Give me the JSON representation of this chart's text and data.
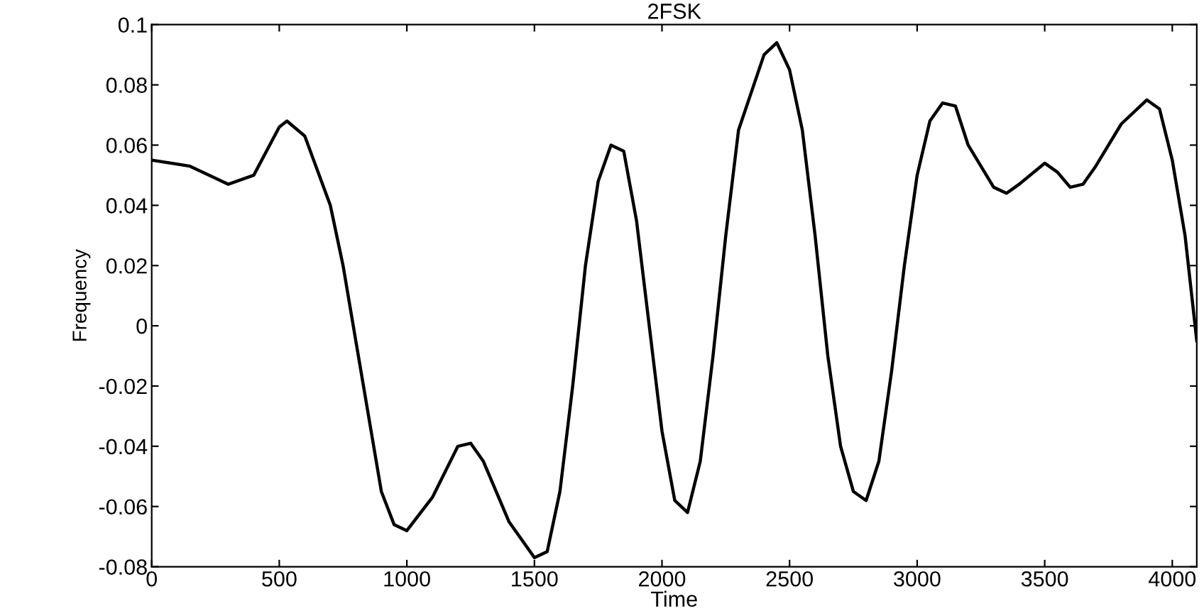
{
  "chart_data": {
    "type": "line",
    "title": "2FSK",
    "xlabel": "Time",
    "ylabel": "Frequency",
    "xlim": [
      0,
      4096
    ],
    "xticks": [
      0,
      500,
      1000,
      1500,
      2000,
      2500,
      3000,
      3500,
      4000
    ],
    "ylim": [
      -0.08,
      0.1
    ],
    "yticks": [
      -0.08,
      -0.06,
      -0.04,
      -0.02,
      0,
      0.02,
      0.04,
      0.06,
      0.08,
      0.1
    ],
    "grid": false,
    "legend": false,
    "marker": "none",
    "line_style": "solid",
    "x": [
      0,
      150,
      300,
      400,
      500,
      530,
      600,
      700,
      750,
      800,
      850,
      900,
      950,
      1000,
      1100,
      1200,
      1250,
      1300,
      1400,
      1500,
      1550,
      1600,
      1650,
      1700,
      1750,
      1800,
      1850,
      1900,
      1950,
      2000,
      2050,
      2100,
      2150,
      2200,
      2250,
      2300,
      2400,
      2450,
      2500,
      2550,
      2600,
      2650,
      2700,
      2750,
      2800,
      2850,
      2900,
      2950,
      3000,
      3050,
      3100,
      3150,
      3200,
      3300,
      3350,
      3400,
      3500,
      3550,
      3600,
      3650,
      3700,
      3800,
      3900,
      3950,
      4000,
      4050,
      4096
    ],
    "series": [
      {
        "color": "#000000",
        "values": [
          0.055,
          0.053,
          0.047,
          0.05,
          0.066,
          0.068,
          0.063,
          0.04,
          0.02,
          -0.005,
          -0.03,
          -0.055,
          -0.066,
          -0.068,
          -0.057,
          -0.04,
          -0.039,
          -0.045,
          -0.065,
          -0.077,
          -0.075,
          -0.055,
          -0.02,
          0.02,
          0.048,
          0.06,
          0.058,
          0.035,
          0.0,
          -0.035,
          -0.058,
          -0.062,
          -0.045,
          -0.01,
          0.03,
          0.065,
          0.09,
          0.094,
          0.085,
          0.065,
          0.03,
          -0.01,
          -0.04,
          -0.055,
          -0.058,
          -0.045,
          -0.015,
          0.02,
          0.05,
          0.068,
          0.074,
          0.073,
          0.06,
          0.046,
          0.044,
          0.047,
          0.054,
          0.051,
          0.046,
          0.047,
          0.053,
          0.067,
          0.075,
          0.072,
          0.055,
          0.03,
          -0.005
        ]
      }
    ]
  }
}
